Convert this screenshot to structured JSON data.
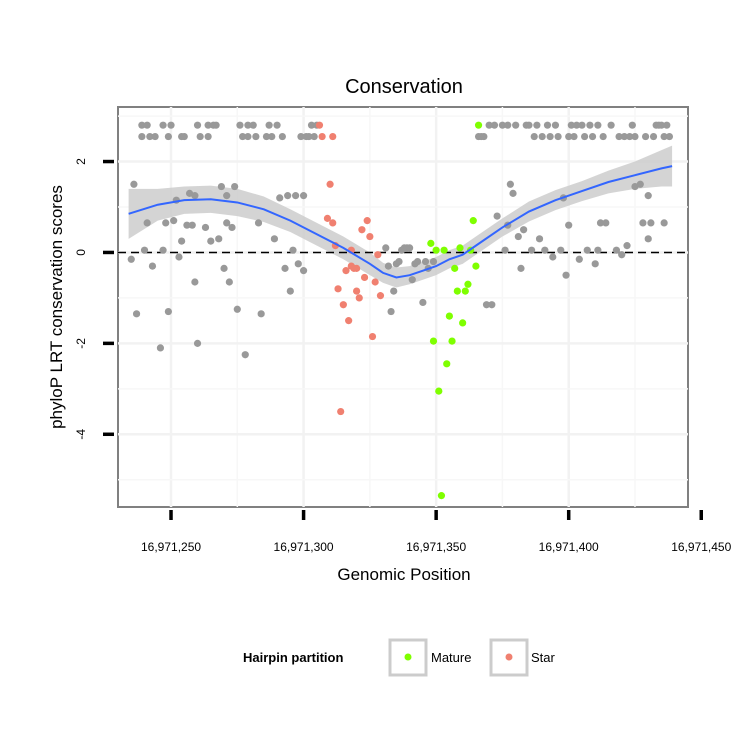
{
  "chart_data": {
    "type": "scatter",
    "title": "Conservation",
    "xlabel": "Genomic Position",
    "ylabel": "phyloP LRT conservation scores",
    "xlim": [
      16971230,
      16971445
    ],
    "ylim": [
      -5.6,
      3.2
    ],
    "x_ticks": [
      16971250,
      16971300,
      16971350,
      16971400,
      16971450
    ],
    "x_tick_labels": [
      "16,971,250",
      "16,971,300",
      "16,971,350",
      "16,971,400",
      "16,971,450"
    ],
    "y_ticks": [
      -4,
      -2,
      0,
      2
    ],
    "y_tick_labels": [
      "-4",
      "-2",
      "0",
      "2"
    ],
    "reference_line": {
      "y": 0,
      "style": "dashed"
    },
    "grid": true,
    "legend": {
      "title": "Hairpin partition",
      "position": "bottom",
      "entries": [
        {
          "label": "Mature",
          "color": "#7fff00"
        },
        {
          "label": "Star",
          "color": "#f08070"
        }
      ]
    },
    "colors": {
      "other": "#999999",
      "mature": "#7fff00",
      "star": "#f08070",
      "smooth": "#3366ff",
      "band": "#cccccc"
    },
    "series": [
      {
        "name": "Other",
        "color": "#999999",
        "points": [
          [
            16971236,
            1.5
          ],
          [
            16971235,
            -0.15
          ],
          [
            16971237,
            -1.35
          ],
          [
            16971239,
            2.55
          ],
          [
            16971239,
            2.8
          ],
          [
            16971240,
            0.05
          ],
          [
            16971241,
            0.65
          ],
          [
            16971241,
            2.8
          ],
          [
            16971242,
            2.55
          ],
          [
            16971243,
            -0.3
          ],
          [
            16971244,
            2.55
          ],
          [
            16971246,
            -2.1
          ],
          [
            16971247,
            0.05
          ],
          [
            16971247,
            2.8
          ],
          [
            16971248,
            0.65
          ],
          [
            16971249,
            -1.3
          ],
          [
            16971249,
            2.55
          ],
          [
            16971250,
            2.8
          ],
          [
            16971251,
            0.7
          ],
          [
            16971252,
            1.15
          ],
          [
            16971253,
            -0.1
          ],
          [
            16971254,
            0.25
          ],
          [
            16971254,
            2.55
          ],
          [
            16971255,
            2.55
          ],
          [
            16971256,
            0.6
          ],
          [
            16971257,
            1.3
          ],
          [
            16971258,
            0.6
          ],
          [
            16971259,
            -0.65
          ],
          [
            16971259,
            1.25
          ],
          [
            16971260,
            -2.0
          ],
          [
            16971260,
            2.8
          ],
          [
            16971261,
            2.55
          ],
          [
            16971263,
            0.55
          ],
          [
            16971264,
            2.8
          ],
          [
            16971264,
            2.55
          ],
          [
            16971265,
            0.25
          ],
          [
            16971266,
            2.8
          ],
          [
            16971267,
            2.8
          ],
          [
            16971268,
            0.3
          ],
          [
            16971269,
            1.45
          ],
          [
            16971270,
            -0.35
          ],
          [
            16971271,
            0.65
          ],
          [
            16971271,
            1.25
          ],
          [
            16971272,
            -0.65
          ],
          [
            16971273,
            0.55
          ],
          [
            16971274,
            1.45
          ],
          [
            16971275,
            -1.25
          ],
          [
            16971276,
            2.8
          ],
          [
            16971277,
            2.55
          ],
          [
            16971278,
            -2.25
          ],
          [
            16971279,
            2.8
          ],
          [
            16971279,
            2.55
          ],
          [
            16971281,
            2.8
          ],
          [
            16971282,
            2.55
          ],
          [
            16971283,
            0.65
          ],
          [
            16971284,
            -1.35
          ],
          [
            16971286,
            2.55
          ],
          [
            16971287,
            2.8
          ],
          [
            16971288,
            2.55
          ],
          [
            16971289,
            0.3
          ],
          [
            16971290,
            2.8
          ],
          [
            16971291,
            1.2
          ],
          [
            16971292,
            2.55
          ],
          [
            16971293,
            -0.35
          ],
          [
            16971294,
            1.25
          ],
          [
            16971295,
            -0.85
          ],
          [
            16971296,
            0.05
          ],
          [
            16971297,
            1.25
          ],
          [
            16971298,
            -0.25
          ],
          [
            16971299,
            2.55
          ],
          [
            16971300,
            -0.4
          ],
          [
            16971300,
            1.25
          ],
          [
            16971301,
            2.55
          ],
          [
            16971302,
            2.55
          ],
          [
            16971303,
            2.8
          ],
          [
            16971304,
            2.55
          ],
          [
            16971305,
            2.8
          ],
          [
            16971331,
            0.1
          ],
          [
            16971332,
            -0.3
          ],
          [
            16971333,
            -1.3
          ],
          [
            16971334,
            -0.85
          ],
          [
            16971335,
            -0.25
          ],
          [
            16971336,
            -0.2
          ],
          [
            16971337,
            0.05
          ],
          [
            16971338,
            0.1
          ],
          [
            16971339,
            0.1
          ],
          [
            16971340,
            0.1
          ],
          [
            16971341,
            -0.6
          ],
          [
            16971342,
            -0.25
          ],
          [
            16971343,
            -0.2
          ],
          [
            16971345,
            -1.1
          ],
          [
            16971346,
            -0.2
          ],
          [
            16971347,
            -0.35
          ],
          [
            16971349,
            -0.2
          ],
          [
            16971366,
            2.55
          ],
          [
            16971367,
            2.55
          ],
          [
            16971368,
            2.55
          ],
          [
            16971369,
            -1.15
          ],
          [
            16971370,
            2.8
          ],
          [
            16971371,
            -1.15
          ],
          [
            16971372,
            2.8
          ],
          [
            16971373,
            0.8
          ],
          [
            16971375,
            2.8
          ],
          [
            16971376,
            0.05
          ],
          [
            16971377,
            0.6
          ],
          [
            16971377,
            2.8
          ],
          [
            16971378,
            1.5
          ],
          [
            16971379,
            1.3
          ],
          [
            16971380,
            2.8
          ],
          [
            16971381,
            0.35
          ],
          [
            16971382,
            -0.35
          ],
          [
            16971383,
            0.5
          ],
          [
            16971384,
            2.8
          ],
          [
            16971385,
            2.8
          ],
          [
            16971386,
            0.05
          ],
          [
            16971387,
            2.55
          ],
          [
            16971388,
            2.8
          ],
          [
            16971389,
            0.3
          ],
          [
            16971390,
            2.55
          ],
          [
            16971391,
            0.05
          ],
          [
            16971392,
            2.8
          ],
          [
            16971393,
            2.55
          ],
          [
            16971394,
            -0.1
          ],
          [
            16971395,
            2.8
          ],
          [
            16971396,
            2.55
          ],
          [
            16971397,
            0.05
          ],
          [
            16971398,
            1.2
          ],
          [
            16971399,
            -0.5
          ],
          [
            16971400,
            0.6
          ],
          [
            16971400,
            2.55
          ],
          [
            16971401,
            2.8
          ],
          [
            16971402,
            2.55
          ],
          [
            16971403,
            2.8
          ],
          [
            16971404,
            -0.15
          ],
          [
            16971405,
            2.8
          ],
          [
            16971406,
            2.55
          ],
          [
            16971407,
            0.05
          ],
          [
            16971408,
            2.8
          ],
          [
            16971409,
            2.55
          ],
          [
            16971410,
            -0.25
          ],
          [
            16971411,
            0.05
          ],
          [
            16971411,
            2.8
          ],
          [
            16971412,
            0.65
          ],
          [
            16971413,
            2.55
          ],
          [
            16971414,
            0.65
          ],
          [
            16971416,
            2.8
          ],
          [
            16971418,
            0.05
          ],
          [
            16971419,
            2.55
          ],
          [
            16971420,
            -0.05
          ],
          [
            16971421,
            2.55
          ],
          [
            16971422,
            0.15
          ],
          [
            16971423,
            2.55
          ],
          [
            16971424,
            2.8
          ],
          [
            16971425,
            2.55
          ],
          [
            16971425,
            1.45
          ],
          [
            16971427,
            1.5
          ],
          [
            16971428,
            0.65
          ],
          [
            16971429,
            2.55
          ],
          [
            16971430,
            1.25
          ],
          [
            16971430,
            0.3
          ],
          [
            16971431,
            0.65
          ],
          [
            16971432,
            2.55
          ],
          [
            16971433,
            2.8
          ],
          [
            16971434,
            2.8
          ],
          [
            16971435,
            2.8
          ],
          [
            16971436,
            0.65
          ],
          [
            16971436,
            2.55
          ],
          [
            16971437,
            2.8
          ],
          [
            16971438,
            2.55
          ]
        ]
      },
      {
        "name": "Star",
        "color": "#f08070",
        "points": [
          [
            16971306,
            2.8
          ],
          [
            16971307,
            2.55
          ],
          [
            16971309,
            0.75
          ],
          [
            16971310,
            1.5
          ],
          [
            16971311,
            0.65
          ],
          [
            16971311,
            2.55
          ],
          [
            16971312,
            0.15
          ],
          [
            16971313,
            -0.8
          ],
          [
            16971314,
            -3.5
          ],
          [
            16971315,
            -1.15
          ],
          [
            16971316,
            -0.4
          ],
          [
            16971317,
            -1.5
          ],
          [
            16971318,
            -0.3
          ],
          [
            16971318,
            0.05
          ],
          [
            16971319,
            -0.35
          ],
          [
            16971320,
            -0.85
          ],
          [
            16971320,
            -0.35
          ],
          [
            16971321,
            -1.0
          ],
          [
            16971322,
            0.5
          ],
          [
            16971323,
            -0.55
          ],
          [
            16971324,
            0.7
          ],
          [
            16971325,
            0.35
          ],
          [
            16971326,
            -1.85
          ],
          [
            16971327,
            -0.65
          ],
          [
            16971328,
            -0.05
          ],
          [
            16971329,
            -0.95
          ]
        ]
      },
      {
        "name": "Mature",
        "color": "#7fff00",
        "points": [
          [
            16971348,
            0.2
          ],
          [
            16971349,
            -1.95
          ],
          [
            16971350,
            0.05
          ],
          [
            16971351,
            -3.05
          ],
          [
            16971352,
            -5.35
          ],
          [
            16971353,
            0.05
          ],
          [
            16971354,
            -2.45
          ],
          [
            16971355,
            -1.4
          ],
          [
            16971356,
            -1.95
          ],
          [
            16971357,
            -0.35
          ],
          [
            16971358,
            -0.85
          ],
          [
            16971359,
            0.1
          ],
          [
            16971360,
            -1.55
          ],
          [
            16971361,
            -0.85
          ],
          [
            16971362,
            -0.7
          ],
          [
            16971363,
            0.05
          ],
          [
            16971364,
            0.7
          ],
          [
            16971365,
            -0.3
          ],
          [
            16971366,
            2.8
          ]
        ]
      }
    ],
    "smooth": {
      "name": "loess fit",
      "color": "#3366ff",
      "x": [
        16971234,
        16971245,
        16971255,
        16971265,
        16971275,
        16971285,
        16971295,
        16971305,
        16971315,
        16971325,
        16971330,
        16971335,
        16971340,
        16971345,
        16971350,
        16971355,
        16971360,
        16971365,
        16971375,
        16971385,
        16971395,
        16971405,
        16971415,
        16971425,
        16971435,
        16971439
      ],
      "y": [
        0.85,
        1.05,
        1.15,
        1.17,
        1.1,
        0.95,
        0.7,
        0.4,
        0.1,
        -0.25,
        -0.45,
        -0.55,
        -0.5,
        -0.4,
        -0.3,
        -0.15,
        -0.05,
        0.15,
        0.55,
        0.9,
        1.15,
        1.35,
        1.55,
        1.7,
        1.85,
        1.9
      ],
      "band_half_width": [
        0.55,
        0.35,
        0.3,
        0.3,
        0.3,
        0.28,
        0.25,
        0.25,
        0.25,
        0.25,
        0.22,
        0.22,
        0.2,
        0.2,
        0.2,
        0.2,
        0.2,
        0.2,
        0.2,
        0.22,
        0.22,
        0.22,
        0.25,
        0.3,
        0.4,
        0.45
      ]
    }
  }
}
